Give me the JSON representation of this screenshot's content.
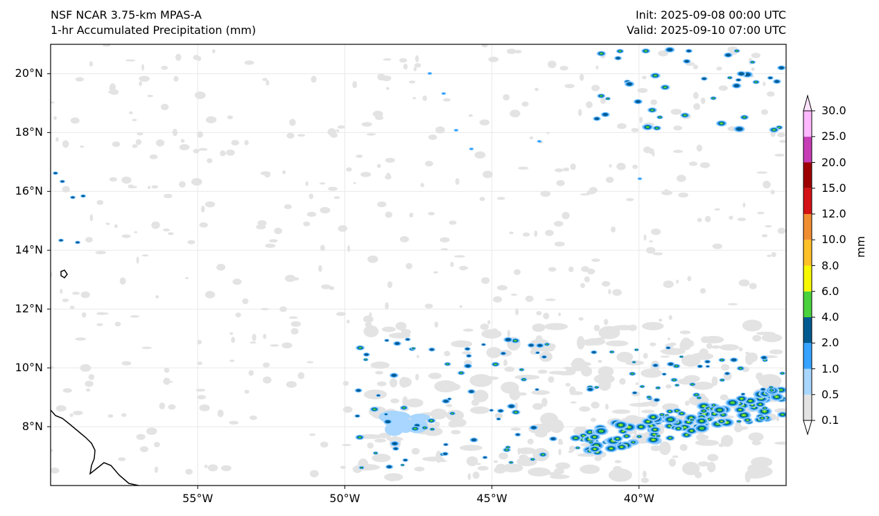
{
  "header": {
    "model": "NSF NCAR 3.75-km MPAS-A",
    "field": "1-hr Accumulated Precipitation (mm)",
    "init": "Init: 2025-09-08 00:00 UTC",
    "valid": "Valid: 2025-09-10 07:00 UTC"
  },
  "map": {
    "lon_range": [
      -60,
      -35
    ],
    "lat_range": [
      6,
      21
    ],
    "lat_ticks": [
      {
        "value": 20,
        "label": "20°N"
      },
      {
        "value": 18,
        "label": "18°N"
      },
      {
        "value": 16,
        "label": "16°N"
      },
      {
        "value": 14,
        "label": "14°N"
      },
      {
        "value": 12,
        "label": "12°N"
      },
      {
        "value": 10,
        "label": "10°N"
      },
      {
        "value": 8,
        "label": "8°N"
      }
    ],
    "lon_ticks": [
      {
        "value": -55,
        "label": "55°W"
      },
      {
        "value": -50,
        "label": "50°W"
      },
      {
        "value": -45,
        "label": "45°W"
      },
      {
        "value": -40,
        "label": "40°W"
      }
    ]
  },
  "colorbar": {
    "unit": "mm",
    "levels": [
      "0.1",
      "0.5",
      "1.0",
      "2.0",
      "4.0",
      "6.0",
      "8.0",
      "10.0",
      "12.0",
      "15.0",
      "20.0",
      "25.0",
      "30.0"
    ],
    "colors": [
      "#e3e3e3",
      "#a8d6ff",
      "#35a3ff",
      "#005a8f",
      "#49d23c",
      "#f7f700",
      "#ffc027",
      "#f18d31",
      "#d41215",
      "#9e0000",
      "#c63db6",
      "#ffb7ff"
    ]
  }
}
